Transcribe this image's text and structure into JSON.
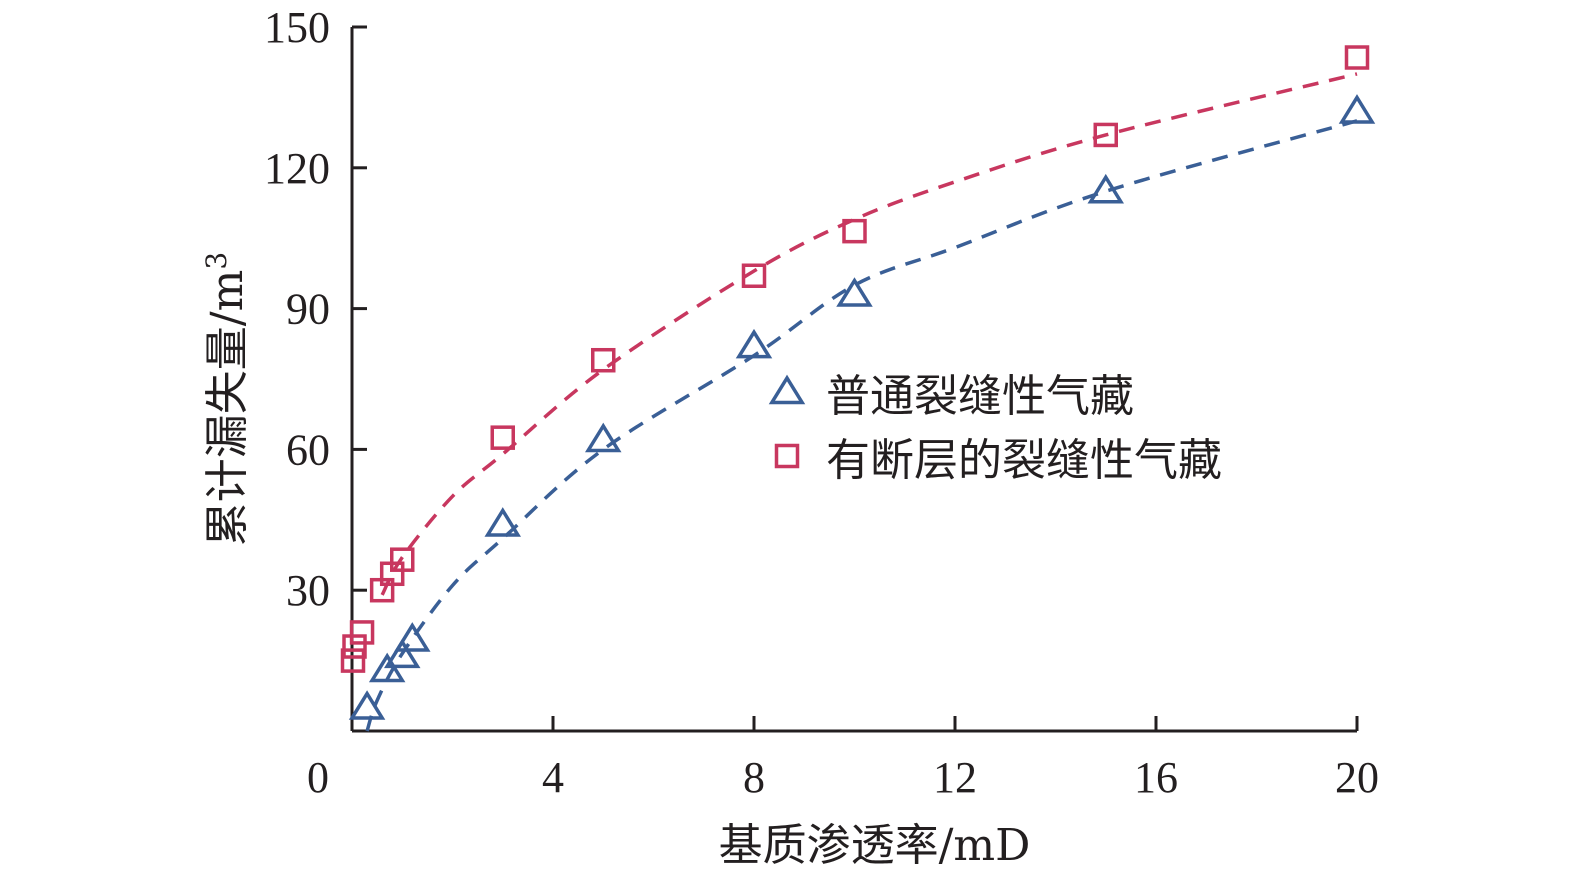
{
  "chart_data": {
    "type": "scatter",
    "xlabel": "基质渗透率/mD",
    "ylabel": "累计漏失量/m",
    "ylabel_sup": "3",
    "xlim": [
      0,
      20
    ],
    "ylim": [
      0,
      150
    ],
    "xticks": [
      0,
      4,
      8,
      12,
      16,
      20
    ],
    "yticks": [
      30,
      60,
      90,
      120,
      150
    ],
    "grid": false,
    "legend_position": "center-right",
    "series": [
      {
        "name": "普通裂缝性气藏",
        "marker": "triangle",
        "color": "#3a5f96",
        "points": [
          [
            0.3,
            5
          ],
          [
            0.7,
            13
          ],
          [
            1.0,
            16
          ],
          [
            1.2,
            19.5
          ],
          [
            3,
            44
          ],
          [
            5,
            62
          ],
          [
            8,
            82
          ],
          [
            10,
            93
          ],
          [
            15,
            115
          ],
          [
            20,
            132
          ]
        ],
        "fit": {
          "type": "log",
          "x_start": 0.3,
          "x_end": 20,
          "points": [
            [
              0.3,
              0
            ],
            [
              0.5,
              6.5
            ],
            [
              1,
              16.5
            ],
            [
              2,
              31
            ],
            [
              3,
              41
            ],
            [
              5,
              60
            ],
            [
              8,
              80
            ],
            [
              10,
              95
            ],
            [
              12,
              103
            ],
            [
              15,
              115
            ],
            [
              20,
              130
            ]
          ]
        }
      },
      {
        "name": "有断层的裂缝性气藏",
        "marker": "square",
        "color": "#c8375f",
        "points": [
          [
            0.02,
            15
          ],
          [
            0.05,
            18
          ],
          [
            0.2,
            21
          ],
          [
            0.6,
            30
          ],
          [
            0.8,
            33.5
          ],
          [
            1.0,
            36.5
          ],
          [
            3,
            62.5
          ],
          [
            5,
            79
          ],
          [
            8,
            97
          ],
          [
            10,
            106.5
          ],
          [
            15,
            127
          ],
          [
            20,
            143.5
          ]
        ],
        "fit": {
          "type": "log",
          "x_start": 0.6,
          "x_end": 20,
          "points": [
            [
              0.6,
              29
            ],
            [
              1,
              37
            ],
            [
              2,
              50
            ],
            [
              3,
              59
            ],
            [
              5,
              77
            ],
            [
              8,
              98
            ],
            [
              10,
              109
            ],
            [
              12,
              117
            ],
            [
              15,
              127
            ],
            [
              20,
              140
            ]
          ]
        }
      }
    ]
  }
}
